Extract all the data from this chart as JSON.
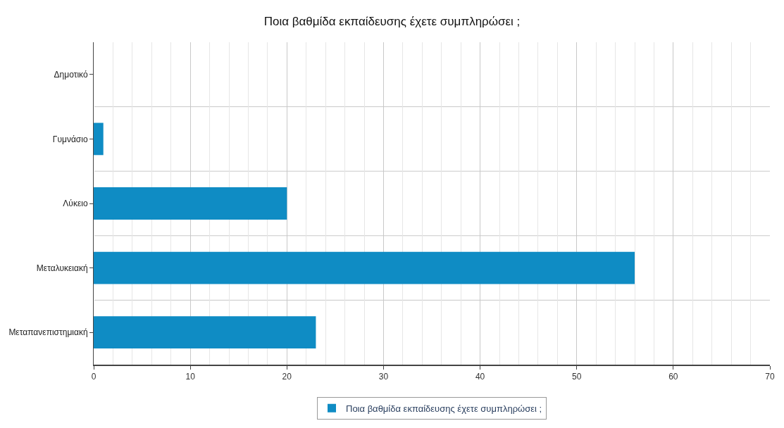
{
  "chart_data": {
    "type": "bar",
    "orientation": "horizontal",
    "title": "Ποια βαθμίδα εκπαίδευσης έχετε συμπληρώσει ;",
    "categories": [
      "Δημοτικό",
      "Γυμνάσιο",
      "Λύκειο",
      "Μεταλυκειακή",
      "Μεταπανεπιστημιακή"
    ],
    "series": [
      {
        "name": "Ποια βαθμίδα εκπαίδευσης έχετε συμπληρώσει ;",
        "color": "#0f8cc4",
        "values": [
          0,
          1,
          20,
          56,
          23
        ]
      }
    ],
    "xlim": [
      0,
      70
    ],
    "xticks": [
      0,
      10,
      20,
      30,
      40,
      50,
      60,
      70
    ],
    "grid": true,
    "legend": "bottom"
  }
}
